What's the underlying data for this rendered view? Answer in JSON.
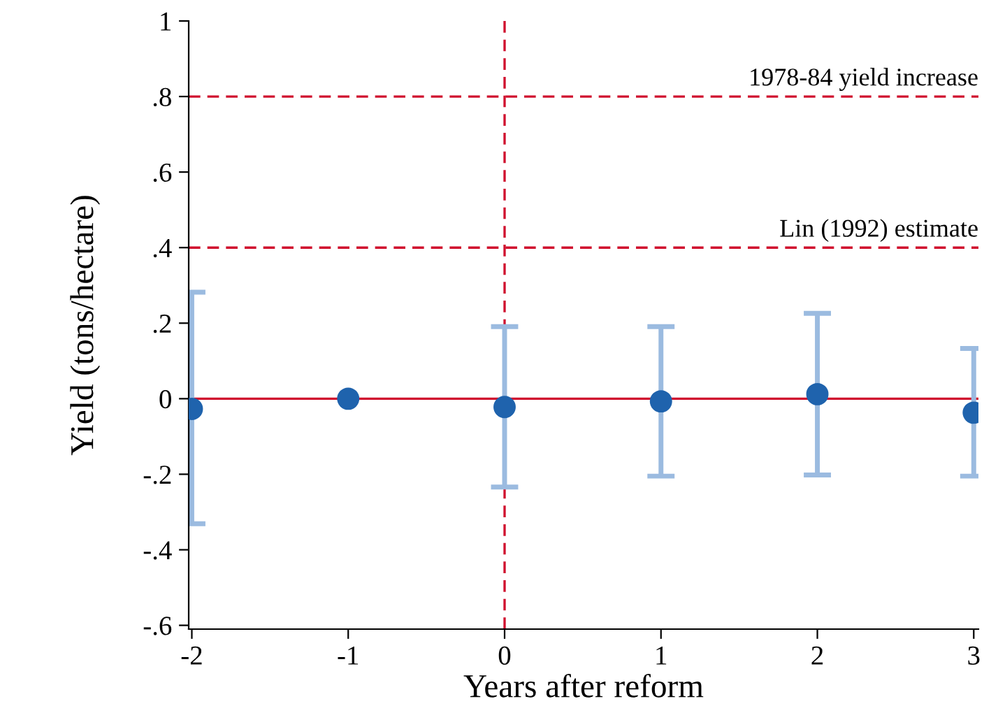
{
  "chart_data": {
    "type": "scatter",
    "xlabel": "Years after reform",
    "ylabel": "Yield (tons/hectare)",
    "x": [
      -2,
      -1,
      0,
      1,
      2,
      3
    ],
    "series": [
      {
        "color": "#1f63ad",
        "values": [
          -0.027,
          0,
          -0.022,
          -0.007,
          0.012,
          -0.037
        ],
        "errors": [
          [
            -0.331,
            0.282
          ],
          null,
          [
            -0.234,
            0.191
          ],
          [
            -0.205,
            0.191
          ],
          [
            -0.202,
            0.226
          ],
          [
            -0.205,
            0.133
          ]
        ]
      }
    ],
    "marker": "circle",
    "xlim": [
      -2.02,
      3.03
    ],
    "ylim": [
      -0.61,
      1.0
    ],
    "xticks": [
      -2,
      -1,
      0,
      1,
      2,
      3
    ],
    "yticks": [
      {
        "value": -0.6,
        "label": "-.6"
      },
      {
        "value": -0.4,
        "label": "-.4"
      },
      {
        "value": -0.2,
        "label": "-.2"
      },
      0,
      {
        "value": 0.2,
        "label": ".2"
      },
      {
        "value": 0.4,
        "label": ".4"
      },
      {
        "value": 0.6,
        "label": ".6"
      },
      {
        "value": 0.8,
        "label": ".8"
      },
      1
    ],
    "ref_lines": [
      {
        "axis": "y",
        "value": 0.8,
        "label": "1978-84 yield increase",
        "color": "#d0102e",
        "line_style": "dashed"
      },
      {
        "axis": "y",
        "value": 0.4,
        "label": "Lin (1992) estimate",
        "color": "#d0102e",
        "line_style": "dashed"
      },
      {
        "axis": "y",
        "value": 0,
        "color": "#d0102e",
        "line_style": "solid"
      },
      {
        "axis": "x",
        "value": 0,
        "color": "#d0102e",
        "line_style": "dashed"
      }
    ],
    "grid": false
  }
}
